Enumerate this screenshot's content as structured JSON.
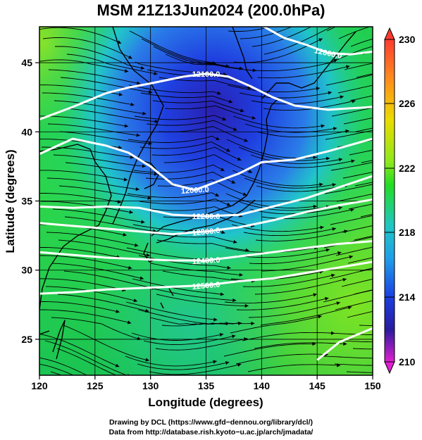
{
  "title": "MSM 21Z13Jun2024 (200.0hPa)",
  "axes": {
    "xlabel": "Longitude (degrees)",
    "ylabel": "Latitude  (degrees)",
    "xlim": [
      120,
      150
    ],
    "ylim": [
      22.4,
      47.6
    ],
    "xticks": [
      120,
      125,
      130,
      135,
      140,
      145,
      150
    ],
    "yticks": [
      25,
      30,
      35,
      40,
      45
    ]
  },
  "colorbar": {
    "range": [
      210,
      230
    ],
    "labels": [
      "230",
      "226",
      "222",
      "218",
      "214",
      "210"
    ],
    "colors": {
      "top": "#ff3b2f",
      "orange": "#ff9a1e",
      "yellow": "#e8e000",
      "green": "#22dd22",
      "cyan": "#1fc6d6",
      "blue": "#1a3fe0",
      "navy": "#2a1b9e",
      "bottom": "#e01fd0"
    }
  },
  "chart_data": {
    "type": "heatmap",
    "field": "temperature",
    "contours": [
      {
        "label": "12000.0",
        "line": [
          [
            120,
            38.4
          ],
          [
            123,
            39.5
          ],
          [
            126,
            39.0
          ],
          [
            128,
            38.5
          ],
          [
            130,
            37.5
          ],
          [
            132,
            36.2
          ],
          [
            134,
            35.8
          ],
          [
            136,
            36.4
          ],
          [
            138,
            37.0
          ],
          [
            140,
            37.8
          ],
          [
            143,
            38.0
          ],
          [
            146,
            38.6
          ],
          [
            150,
            39.5
          ]
        ]
      },
      {
        "label": "12100.0",
        "line": [
          [
            120,
            40.9
          ],
          [
            123,
            41.8
          ],
          [
            126,
            42.8
          ],
          [
            128,
            43.2
          ],
          [
            130,
            43.5
          ],
          [
            133,
            44.0
          ],
          [
            135,
            44.2
          ],
          [
            137,
            44.0
          ],
          [
            139,
            43.3
          ],
          [
            141,
            42.5
          ],
          [
            143,
            41.9
          ],
          [
            146,
            41.6
          ],
          [
            150,
            41.8
          ]
        ]
      },
      {
        "label": "12000.0",
        "line": [
          [
            140,
            47.7
          ],
          [
            142,
            46.8
          ],
          [
            144,
            46.3
          ],
          [
            146,
            45.7
          ],
          [
            148,
            45.6
          ],
          [
            150,
            45.8
          ]
        ]
      },
      {
        "label": "12200.0",
        "line": [
          [
            120,
            34.6
          ],
          [
            123,
            34.5
          ],
          [
            126,
            34.6
          ],
          [
            129,
            34.5
          ],
          [
            132,
            34.0
          ],
          [
            135,
            33.9
          ],
          [
            138,
            34.0
          ],
          [
            141,
            34.6
          ],
          [
            144,
            35.2
          ],
          [
            147,
            36.0
          ],
          [
            150,
            36.8
          ]
        ]
      },
      {
        "label": "12300.0",
        "line": [
          [
            120,
            33.4
          ],
          [
            123,
            33.2
          ],
          [
            126,
            33.0
          ],
          [
            129,
            32.8
          ],
          [
            132,
            32.6
          ],
          [
            135,
            32.8
          ],
          [
            138,
            33.1
          ],
          [
            141,
            33.6
          ],
          [
            144,
            34.2
          ],
          [
            147,
            34.7
          ],
          [
            150,
            35.1
          ]
        ]
      },
      {
        "label": "12400.0",
        "line": [
          [
            120,
            31.3
          ],
          [
            123,
            31.1
          ],
          [
            126,
            30.9
          ],
          [
            129,
            30.8
          ],
          [
            132,
            30.7
          ],
          [
            135,
            30.7
          ],
          [
            138,
            31.0
          ],
          [
            141,
            31.3
          ],
          [
            144,
            31.6
          ],
          [
            147,
            31.9
          ],
          [
            150,
            32.1
          ]
        ]
      },
      {
        "label": "12500.0",
        "line": [
          [
            120,
            28.3
          ],
          [
            123,
            28.4
          ],
          [
            126,
            28.6
          ],
          [
            129,
            28.7
          ],
          [
            132,
            28.8
          ],
          [
            135,
            28.9
          ],
          [
            138,
            29.2
          ],
          [
            141,
            29.4
          ],
          [
            144,
            29.8
          ],
          [
            147,
            30.2
          ],
          [
            150,
            30.6
          ]
        ]
      },
      {
        "label": "",
        "line": [
          [
            145,
            23.5
          ],
          [
            147,
            24.8
          ],
          [
            150,
            25.8
          ]
        ]
      }
    ]
  },
  "credits": {
    "line1": "Drawing by DCL (https://www.gfd−dennou.org/library/dcl/)",
    "line2": "Data from http://database.rish.kyoto−u.ac.jp/arch/jmadata/"
  }
}
